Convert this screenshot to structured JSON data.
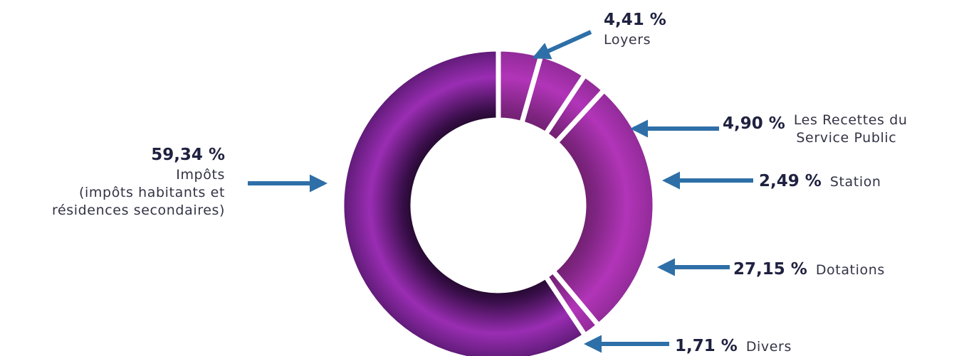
{
  "chart_data": {
    "type": "pie",
    "style": "donut",
    "title": "",
    "slices": [
      {
        "label": "Loyers",
        "value": 4.41,
        "value_label": "4,41 %",
        "lines": [
          "Loyers"
        ]
      },
      {
        "label": "Les Recettes du Service Public",
        "value": 4.9,
        "value_label": "4,90 %",
        "lines": [
          "Les Recettes du",
          "Service Public"
        ]
      },
      {
        "label": "Station",
        "value": 2.49,
        "value_label": "2,49 %",
        "lines": [
          "Station"
        ]
      },
      {
        "label": "Dotations",
        "value": 27.15,
        "value_label": "27,15 %",
        "lines": [
          "Dotations"
        ]
      },
      {
        "label": "Divers",
        "value": 1.71,
        "value_label": "1,71 %",
        "lines": [
          "Divers"
        ]
      },
      {
        "label": "Impôts (impôts habitants et résidences secondaires)",
        "value": 59.34,
        "value_label": "59,34 %",
        "lines": [
          "Impôts",
          "(impôts habitants et",
          "résidences secondaires)"
        ]
      }
    ],
    "colors": {
      "slice_light": "#cf3fc0",
      "slice_mid": "#8d2aa6",
      "slice_dark": "#1c0a26",
      "separator": "#ffffff",
      "arrow": "#2e6fa8"
    }
  }
}
